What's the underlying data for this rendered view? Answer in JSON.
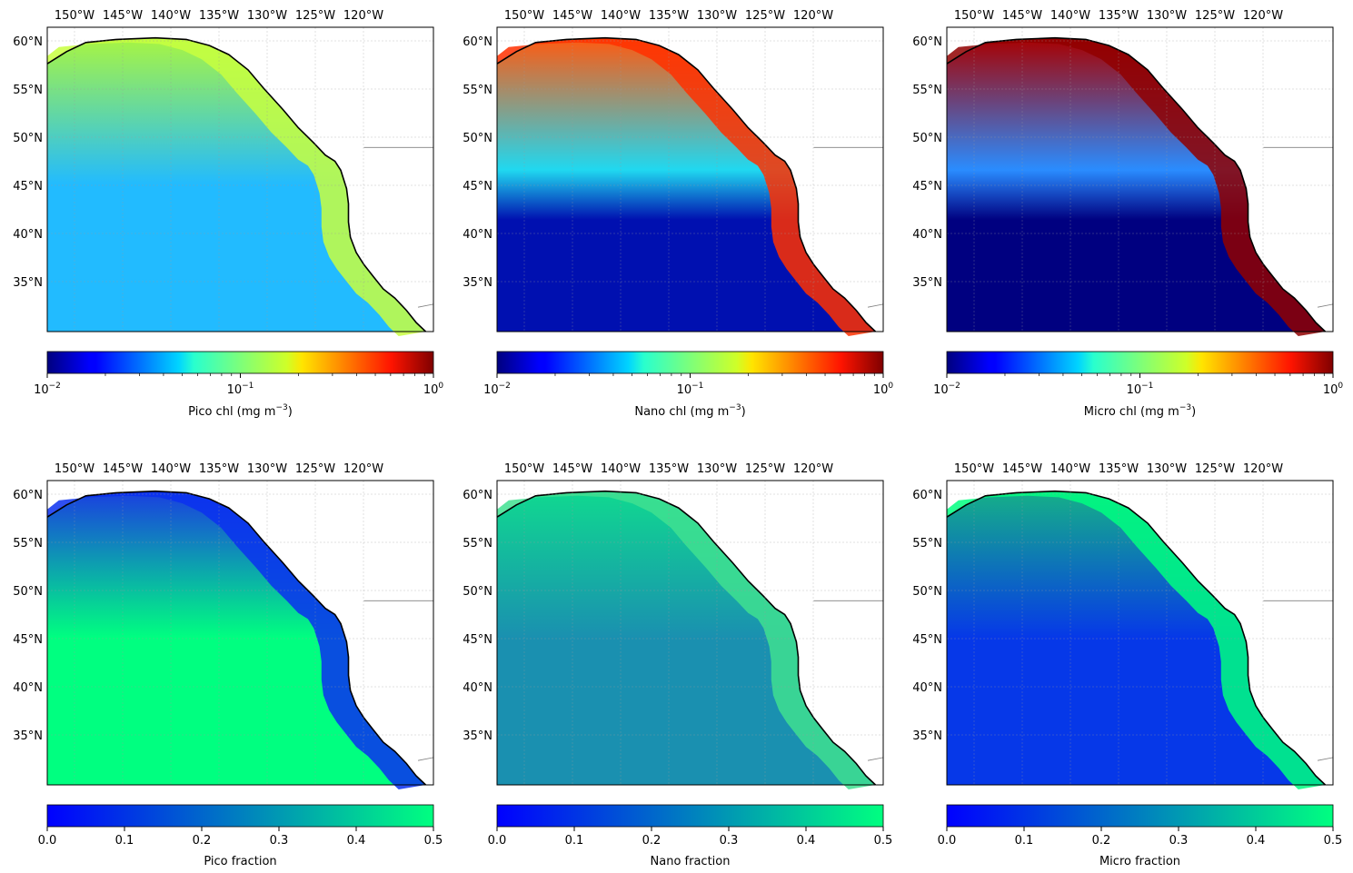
{
  "figure": {
    "lon_labels": [
      "150°W",
      "145°W",
      "140°W",
      "135°W",
      "130°W",
      "125°W",
      "120°W"
    ],
    "lat_labels": [
      "60°N",
      "55°N",
      "50°N",
      "45°N",
      "40°N",
      "35°N"
    ],
    "panels": [
      {
        "id": "pico-chl",
        "colorbar_label": "Pico chl (mg m",
        "colorbar_exp": "−3",
        "colorbar_suffix": ")",
        "scale": "log",
        "colormap": "jet",
        "ticks": [
          {
            "base": "10",
            "exp": "−2"
          },
          {
            "base": "10",
            "exp": "−1"
          },
          {
            "base": "10",
            "exp": "0"
          }
        ]
      },
      {
        "id": "nano-chl",
        "colorbar_label": "Nano chl (mg m",
        "colorbar_exp": "−3",
        "colorbar_suffix": ")",
        "scale": "log",
        "colormap": "jet",
        "ticks": [
          {
            "base": "10",
            "exp": "−2"
          },
          {
            "base": "10",
            "exp": "−1"
          },
          {
            "base": "10",
            "exp": "0"
          }
        ]
      },
      {
        "id": "micro-chl",
        "colorbar_label": "Micro chl (mg m",
        "colorbar_exp": "−3",
        "colorbar_suffix": ")",
        "scale": "log",
        "colormap": "jet",
        "ticks": [
          {
            "base": "10",
            "exp": "−2"
          },
          {
            "base": "10",
            "exp": "−1"
          },
          {
            "base": "10",
            "exp": "0"
          }
        ]
      },
      {
        "id": "pico-fraction",
        "colorbar_label": "Pico fraction",
        "colorbar_exp": "",
        "colorbar_suffix": "",
        "scale": "linear",
        "colormap": "winter",
        "ticks": [
          "0.0",
          "0.1",
          "0.2",
          "0.3",
          "0.4",
          "0.5"
        ]
      },
      {
        "id": "nano-fraction",
        "colorbar_label": "Nano fraction",
        "colorbar_exp": "",
        "colorbar_suffix": "",
        "scale": "linear",
        "colormap": "winter",
        "ticks": [
          "0.0",
          "0.1",
          "0.2",
          "0.3",
          "0.4",
          "0.5"
        ]
      },
      {
        "id": "micro-fraction",
        "colorbar_label": "Micro fraction",
        "colorbar_exp": "",
        "colorbar_suffix": "",
        "scale": "linear",
        "colormap": "winter",
        "ticks": [
          "0.0",
          "0.1",
          "0.2",
          "0.3",
          "0.4",
          "0.5"
        ]
      }
    ],
    "colors": {
      "pico_chl_offshore": "#22bbff",
      "pico_chl_north": "#a8f542",
      "pico_chl_coast": "#c8ff40",
      "nano_chl_offshore": "#0010b0",
      "nano_chl_mid": "#20d8f0",
      "nano_chl_north": "#ff5a10",
      "nano_chl_coast": "#ff3000",
      "micro_chl_offshore": "#000080",
      "micro_chl_mid": "#2a8cff",
      "micro_chl_north": "#a80000",
      "micro_chl_coast": "#900000",
      "pico_frac_offshore": "#00ff80",
      "pico_frac_north": "#1a3fe0",
      "pico_frac_coast": "#0a30f0",
      "nano_frac_offshore": "#1a90b0",
      "nano_frac_north": "#10d890",
      "nano_frac_coast": "#40e090",
      "micro_frac_offshore": "#0638e8",
      "micro_frac_north": "#15b088",
      "micro_frac_coast": "#00ff80",
      "land": "#ffffff",
      "coastline": "#000000",
      "border": "#808080"
    }
  }
}
